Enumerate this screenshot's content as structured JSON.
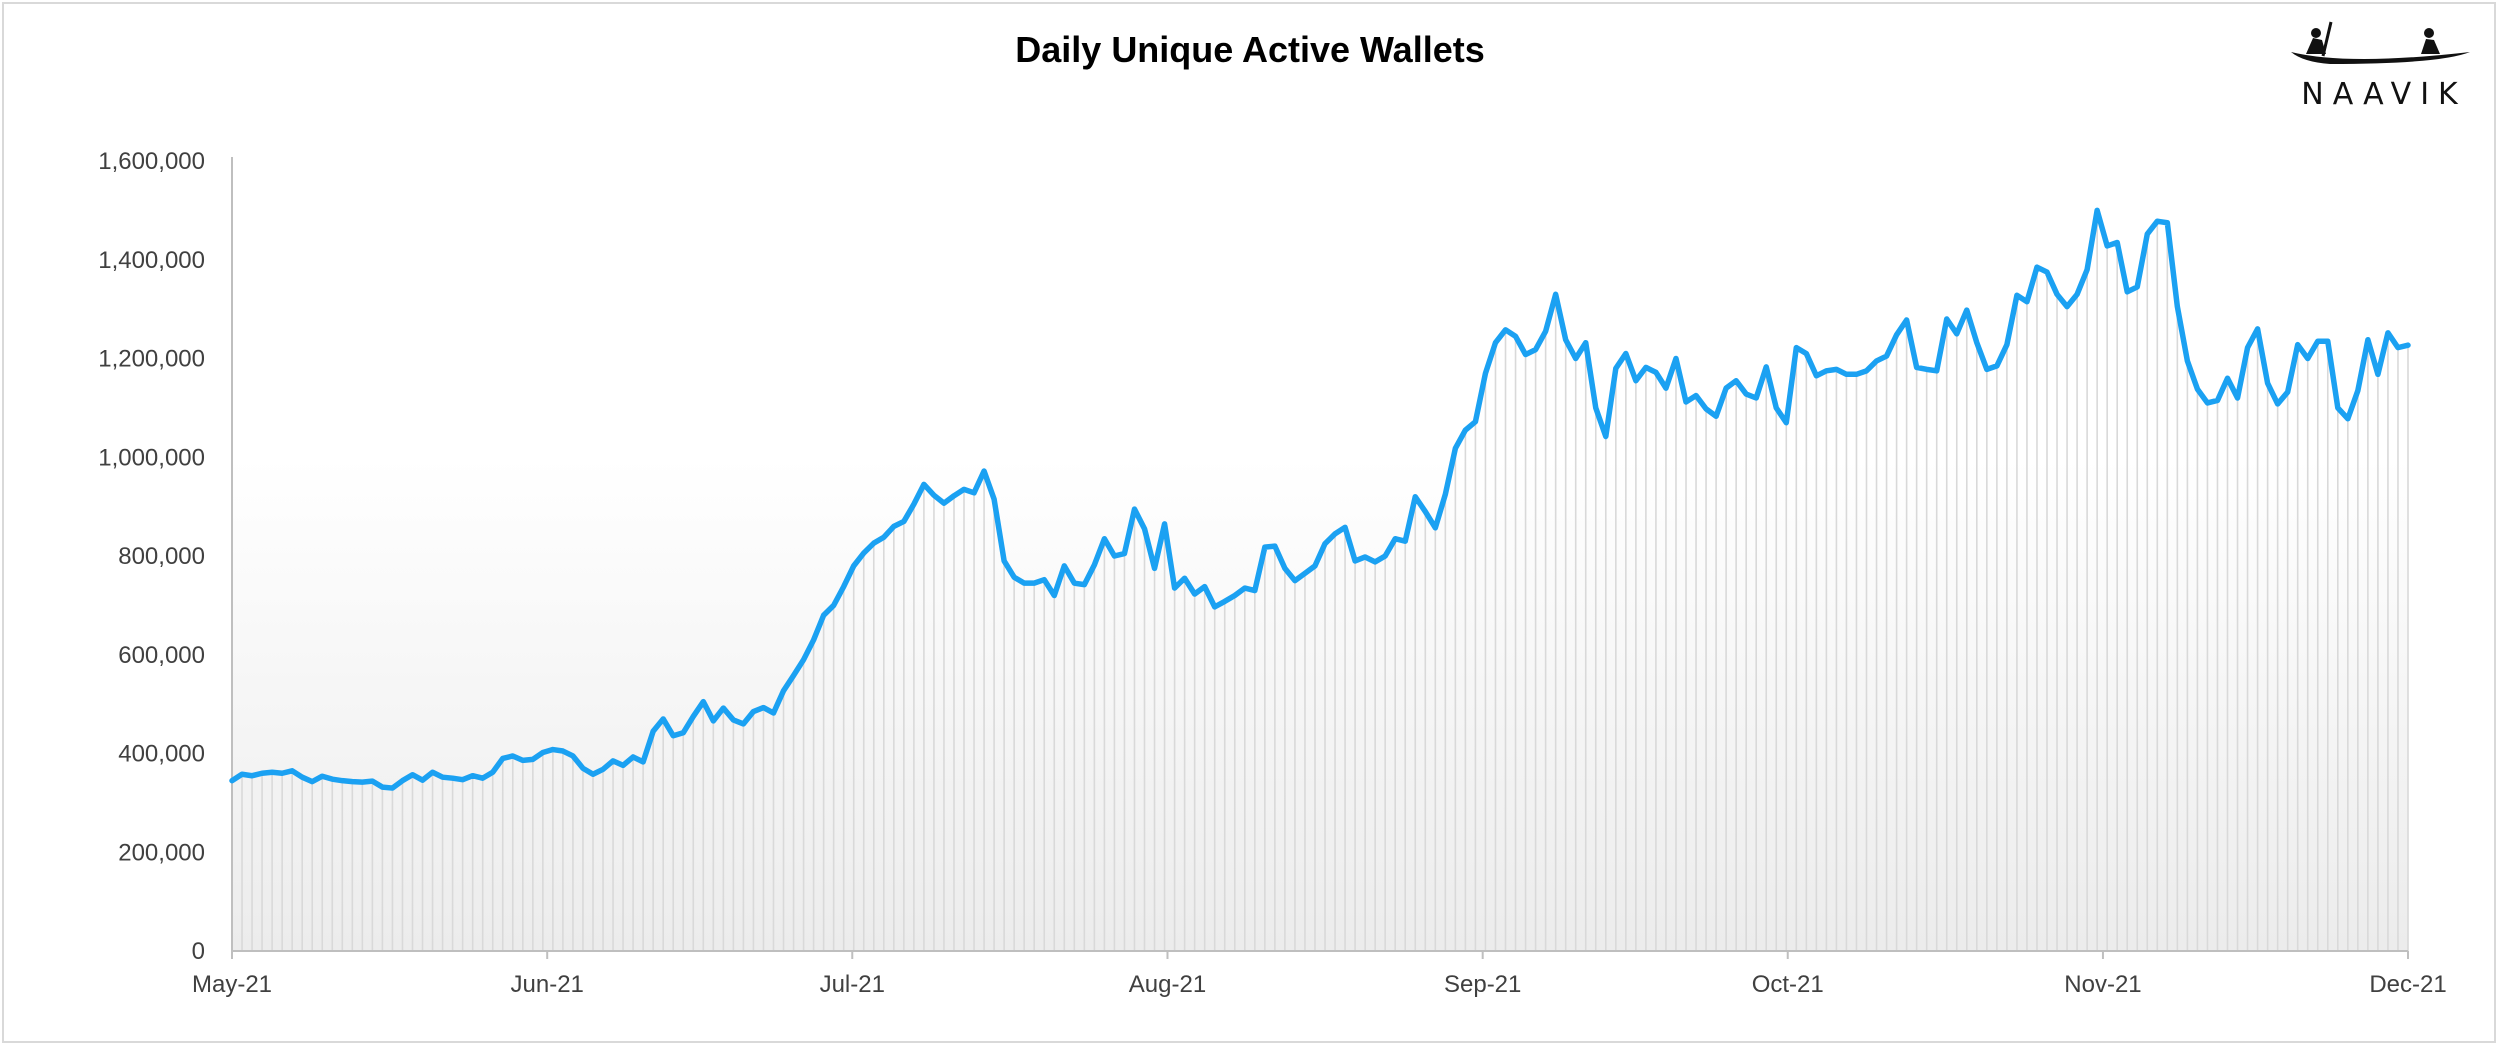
{
  "logo": {
    "text": "NAAVIK"
  },
  "chart_data": {
    "type": "line",
    "title": "Daily Unique Active Wallets",
    "xlabel": "",
    "ylabel": "",
    "ylim": [
      0,
      1600000
    ],
    "y_ticks": [
      0,
      200000,
      400000,
      600000,
      800000,
      1000000,
      1200000,
      1400000,
      1600000
    ],
    "y_tick_labels": [
      "0",
      "200,000",
      "400,000",
      "600,000",
      "800,000",
      "1,000,000",
      "1,200,000",
      "1,400,000",
      "1,600,000"
    ],
    "x_tick_labels": [
      "May-21",
      "Jun-21",
      "Jul-21",
      "Aug-21",
      "Sep-21",
      "Oct-21",
      "Nov-21",
      "Dec-21"
    ],
    "x_ticks": [
      "2021-05-01",
      "2021-06-01",
      "2021-07-01",
      "2021-08-01",
      "2021-09-01",
      "2021-10-01",
      "2021-11-01",
      "2021-12-01"
    ],
    "x_start": "2021-05-01",
    "x_end": "2021-12-01",
    "grid": false,
    "legend": "none",
    "line_color": "#1ba1f2",
    "fill_bar_color": "#d9d9d9",
    "series": [
      {
        "values": [
          345000,
          358000,
          355000,
          360000,
          362000,
          360000,
          365000,
          352000,
          343000,
          354000,
          348000,
          345000,
          343000,
          342000,
          344000,
          332000,
          330000,
          345000,
          357000,
          346000,
          362000,
          352000,
          350000,
          347000,
          355000,
          350000,
          362000,
          390000,
          395000,
          386000,
          388000,
          402000,
          408000,
          405000,
          395000,
          370000,
          358000,
          368000,
          385000,
          376000,
          393000,
          383000,
          445000,
          470000,
          436000,
          442000,
          475000,
          505000,
          466000,
          492000,
          468000,
          460000,
          485000,
          493000,
          482000,
          527000,
          558000,
          590000,
          630000,
          680000,
          700000,
          738000,
          780000,
          806000,
          826000,
          838000,
          860000,
          870000,
          905000,
          945000,
          923000,
          907000,
          922000,
          935000,
          928000,
          972000,
          915000,
          790000,
          757000,
          745000,
          745000,
          752000,
          720000,
          780000,
          745000,
          742000,
          782000,
          835000,
          800000,
          805000,
          895000,
          855000,
          775000,
          865000,
          735000,
          755000,
          723000,
          738000,
          697000,
          708000,
          720000,
          735000,
          730000,
          818000,
          820000,
          775000,
          750000,
          765000,
          780000,
          825000,
          845000,
          858000,
          790000,
          798000,
          788000,
          800000,
          835000,
          830000,
          920000,
          890000,
          857000,
          925000,
          1018000,
          1055000,
          1072000,
          1170000,
          1232000,
          1258000,
          1245000,
          1208000,
          1218000,
          1255000,
          1330000,
          1238000,
          1200000,
          1232000,
          1100000,
          1042000,
          1180000,
          1210000,
          1155000,
          1182000,
          1172000,
          1140000,
          1200000,
          1112000,
          1125000,
          1098000,
          1083000,
          1140000,
          1155000,
          1128000,
          1120000,
          1183000,
          1100000,
          1070000,
          1222000,
          1210000,
          1165000,
          1175000,
          1178000,
          1168000,
          1168000,
          1175000,
          1195000,
          1205000,
          1248000,
          1278000,
          1182000,
          1178000,
          1175000,
          1280000,
          1250000,
          1298000,
          1232000,
          1178000,
          1185000,
          1228000,
          1328000,
          1315000,
          1385000,
          1375000,
          1330000,
          1305000,
          1330000,
          1380000,
          1500000,
          1428000,
          1435000,
          1335000,
          1345000,
          1452000,
          1478000,
          1475000,
          1305000,
          1195000,
          1138000,
          1110000,
          1115000,
          1160000,
          1120000,
          1222000,
          1260000,
          1150000,
          1108000,
          1132000,
          1228000,
          1200000,
          1235000,
          1235000,
          1100000,
          1078000,
          1135000,
          1238000,
          1168000,
          1252000,
          1222000,
          1227000
        ]
      }
    ]
  }
}
